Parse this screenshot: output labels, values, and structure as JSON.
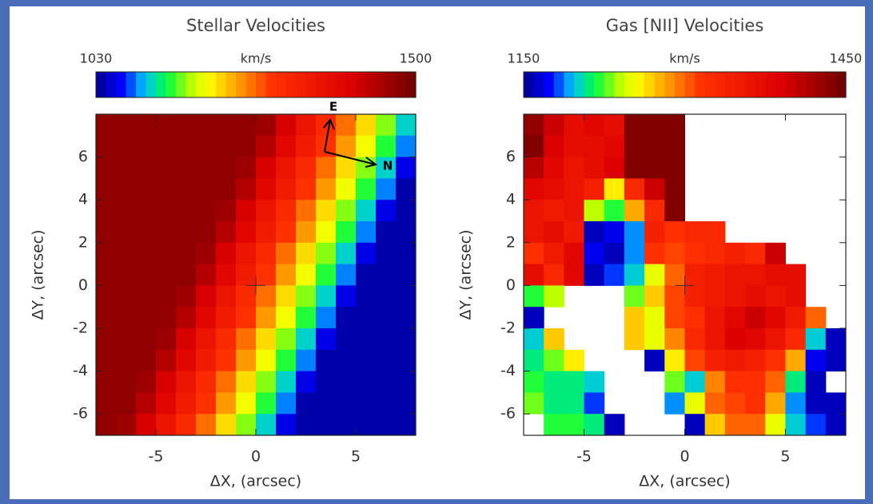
{
  "chart_data": [
    {
      "type": "heatmap",
      "title": "Stellar Velocities",
      "colorbar_label": "km/s",
      "clim": [
        1030,
        1500
      ],
      "xlabel": "ΔX, (arcsec)",
      "ylabel": "ΔY, (arcsec)",
      "xlim": [
        -8,
        8
      ],
      "ylim": [
        -7,
        8
      ],
      "xticks": [
        -5,
        0,
        5
      ],
      "yticks": [
        -6,
        -4,
        -2,
        0,
        2,
        4,
        6
      ],
      "compass": {
        "east": "E",
        "north": "N"
      },
      "x": [
        -7.5,
        -6.5,
        -5.5,
        -4.5,
        -3.5,
        -2.5,
        -1.5,
        -0.5,
        0.5,
        1.5,
        2.5,
        3.5,
        4.5,
        5.5,
        6.5,
        7.5
      ],
      "y": [
        7.5,
        6.5,
        5.5,
        4.5,
        3.5,
        2.5,
        1.5,
        0.5,
        -0.5,
        -1.5,
        -2.5,
        -3.5,
        -4.5,
        -5.5,
        -6.5
      ],
      "z": [
        [
          1470,
          1470,
          1470,
          1470,
          1470,
          1470,
          1470,
          1470,
          1460,
          1410,
          1360,
          1310,
          1260,
          1210,
          1160,
          1110
        ],
        [
          1470,
          1470,
          1470,
          1470,
          1470,
          1470,
          1470,
          1470,
          1440,
          1390,
          1340,
          1290,
          1240,
          1190,
          1140,
          1090
        ],
        [
          1470,
          1470,
          1470,
          1470,
          1470,
          1470,
          1470,
          1460,
          1410,
          1360,
          1310,
          1260,
          1210,
          1160,
          1110,
          1060
        ],
        [
          1470,
          1470,
          1470,
          1470,
          1470,
          1470,
          1470,
          1440,
          1390,
          1340,
          1290,
          1240,
          1190,
          1140,
          1090,
          1040
        ],
        [
          1470,
          1470,
          1470,
          1470,
          1470,
          1470,
          1460,
          1410,
          1360,
          1310,
          1260,
          1210,
          1160,
          1110,
          1060,
          1040
        ],
        [
          1470,
          1470,
          1470,
          1470,
          1470,
          1470,
          1440,
          1390,
          1340,
          1290,
          1240,
          1190,
          1140,
          1090,
          1040,
          1040
        ],
        [
          1470,
          1470,
          1470,
          1470,
          1470,
          1460,
          1410,
          1360,
          1310,
          1260,
          1210,
          1160,
          1110,
          1060,
          1040,
          1040
        ],
        [
          1470,
          1470,
          1470,
          1470,
          1470,
          1440,
          1390,
          1340,
          1290,
          1240,
          1190,
          1140,
          1090,
          1040,
          1040,
          1040
        ],
        [
          1470,
          1470,
          1470,
          1470,
          1460,
          1410,
          1360,
          1310,
          1260,
          1210,
          1160,
          1110,
          1060,
          1040,
          1040,
          1040
        ],
        [
          1470,
          1470,
          1470,
          1470,
          1440,
          1390,
          1340,
          1290,
          1240,
          1190,
          1140,
          1090,
          1040,
          1040,
          1040,
          1040
        ],
        [
          1470,
          1470,
          1470,
          1460,
          1410,
          1360,
          1310,
          1260,
          1210,
          1160,
          1110,
          1060,
          1040,
          1040,
          1040,
          1040
        ],
        [
          1470,
          1470,
          1470,
          1440,
          1390,
          1340,
          1290,
          1240,
          1190,
          1140,
          1090,
          1040,
          1040,
          1040,
          1040,
          1040
        ],
        [
          1470,
          1470,
          1460,
          1410,
          1360,
          1310,
          1260,
          1210,
          1160,
          1110,
          1060,
          1040,
          1040,
          1040,
          1040,
          1040
        ],
        [
          1470,
          1470,
          1440,
          1390,
          1340,
          1290,
          1240,
          1190,
          1140,
          1090,
          1040,
          1040,
          1040,
          1040,
          1040,
          1040
        ],
        [
          1470,
          1460,
          1410,
          1360,
          1310,
          1260,
          1210,
          1160,
          1110,
          1060,
          1040,
          1040,
          1040,
          1040,
          1040,
          1040
        ]
      ]
    },
    {
      "type": "heatmap",
      "title": "Gas [NII] Velocities",
      "colorbar_label": "km/s",
      "clim": [
        1150,
        1450
      ],
      "xlabel": "ΔX, (arcsec)",
      "ylabel": "ΔY, (arcsec)",
      "xlim": [
        -8,
        8
      ],
      "ylim": [
        -7,
        8
      ],
      "xticks": [
        -5,
        0,
        5
      ],
      "yticks": [
        -6,
        -4,
        -2,
        0,
        2,
        4,
        6
      ],
      "x": [
        -7.5,
        -6.5,
        -5.5,
        -4.5,
        -3.5,
        -2.5,
        -1.5,
        -0.5,
        0.5,
        1.5,
        2.5,
        3.5,
        4.5,
        5.5,
        6.5,
        7.5
      ],
      "y": [
        7.5,
        6.5,
        5.5,
        4.5,
        3.5,
        2.5,
        1.5,
        0.5,
        -0.5,
        -1.5,
        -2.5,
        -3.5,
        -4.5,
        -5.5,
        -6.5
      ],
      "z": [
        [
          1430,
          1400,
          1370,
          1380,
          1370,
          1440,
          1440,
          1440,
          null,
          null,
          null,
          null,
          null,
          null,
          null,
          null
        ],
        [
          1440,
          1390,
          1370,
          1370,
          1380,
          1440,
          1440,
          1440,
          null,
          null,
          null,
          null,
          null,
          null,
          null,
          null
        ],
        [
          1410,
          1380,
          1360,
          1370,
          1390,
          1440,
          1440,
          1440,
          null,
          null,
          null,
          null,
          null,
          null,
          null,
          null
        ],
        [
          1380,
          1370,
          1360,
          1340,
          1260,
          1330,
          1400,
          1440,
          null,
          null,
          null,
          null,
          null,
          null,
          null,
          null
        ],
        [
          1360,
          1350,
          1360,
          1240,
          1220,
          1280,
          1330,
          1440,
          null,
          null,
          null,
          null,
          null,
          null,
          null,
          null
        ],
        [
          1360,
          1370,
          1350,
          1160,
          1170,
          1190,
          1340,
          1320,
          1330,
          1330,
          null,
          null,
          null,
          null,
          null,
          null
        ],
        [
          1320,
          1350,
          1380,
          1170,
          1160,
          1190,
          1320,
          1310,
          1320,
          1330,
          1340,
          1330,
          1400,
          null,
          null,
          null
        ],
        [
          1370,
          1330,
          1380,
          1160,
          1180,
          1200,
          1250,
          1300,
          1340,
          1350,
          1360,
          1360,
          1370,
          1370,
          null,
          null
        ],
        [
          1220,
          1240,
          null,
          null,
          null,
          1230,
          1270,
          1310,
          1340,
          1350,
          1360,
          1370,
          1360,
          1370,
          null,
          null
        ],
        [
          1160,
          null,
          null,
          null,
          null,
          1270,
          1250,
          1310,
          1320,
          1360,
          1380,
          1400,
          1380,
          1350,
          1300,
          null
        ],
        [
          1200,
          1270,
          null,
          null,
          null,
          1270,
          1250,
          1290,
          1330,
          1360,
          1390,
          1380,
          1360,
          1330,
          1200,
          1160
        ],
        [
          1210,
          1230,
          1260,
          null,
          null,
          null,
          1160,
          1260,
          1310,
          1340,
          1350,
          1340,
          1320,
          1280,
          1170,
          1160
        ],
        [
          1220,
          1210,
          1210,
          1200,
          null,
          null,
          null,
          1230,
          1200,
          1290,
          1320,
          1320,
          1300,
          1210,
          1160,
          null
        ],
        [
          1230,
          1210,
          1210,
          1180,
          null,
          null,
          null,
          1190,
          1250,
          1300,
          1310,
          1320,
          1280,
          1190,
          1160,
          1160
        ],
        [
          null,
          1220,
          1220,
          1210,
          1160,
          null,
          null,
          null,
          1160,
          1270,
          1300,
          1300,
          1250,
          1200,
          1180,
          1160
        ]
      ]
    }
  ]
}
